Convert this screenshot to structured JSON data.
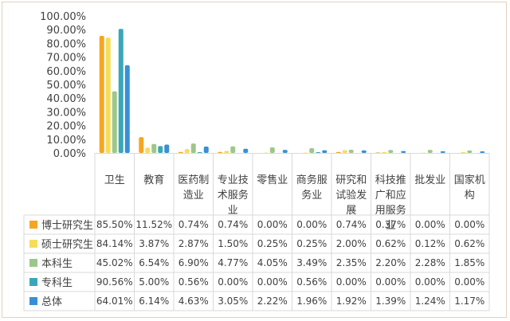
{
  "colors": {
    "博士研究生": "#f5a623",
    "硕士研究生": "#f5dd5a",
    "本科生": "#9dc78a",
    "专科生": "#3aa7b8",
    "总体": "#3a8fd4"
  },
  "chart_data": {
    "type": "bar",
    "ylim": [
      0,
      100
    ],
    "yticks": [
      "0.00%",
      "10.00%",
      "20.00%",
      "30.00%",
      "40.00%",
      "50.00%",
      "60.00%",
      "70.00%",
      "80.00%",
      "90.00%",
      "100.00%"
    ],
    "categories": [
      "卫生",
      "教育",
      "医药制造业",
      "专业技术服务业",
      "零售业",
      "商务服务业",
      "研究和试验发展",
      "科技推广和应用服务业",
      "批发业",
      "国家机构"
    ],
    "category_lines": [
      [
        "卫生"
      ],
      [
        "教育"
      ],
      [
        "医药制",
        "造业"
      ],
      [
        "专业技",
        "术服务",
        "业"
      ],
      [
        "零售业"
      ],
      [
        "商务服",
        "务业"
      ],
      [
        "研究和",
        "试验发",
        "展"
      ],
      [
        "科技推",
        "广和应",
        "用服务",
        "业"
      ],
      [
        "批发业"
      ],
      [
        "国家机",
        "构"
      ]
    ],
    "series": [
      {
        "name": "博士研究生",
        "values": [
          85.5,
          11.52,
          0.74,
          0.74,
          0.0,
          0.0,
          0.74,
          0.37,
          0.0,
          0.0
        ],
        "labels": [
          "85.50%",
          "11.52%",
          "0.74%",
          "0.74%",
          "0.00%",
          "0.00%",
          "0.74%",
          "0.37%",
          "0.00%",
          "0.00%"
        ]
      },
      {
        "name": "硕士研究生",
        "values": [
          84.14,
          3.87,
          2.87,
          1.5,
          0.25,
          0.25,
          2.0,
          0.62,
          0.12,
          0.62
        ],
        "labels": [
          "84.14%",
          "3.87%",
          "2.87%",
          "1.50%",
          "0.25%",
          "0.25%",
          "2.00%",
          "0.62%",
          "0.12%",
          "0.62%"
        ]
      },
      {
        "name": "本科生",
        "values": [
          45.02,
          6.54,
          6.9,
          4.77,
          4.05,
          3.49,
          2.35,
          2.2,
          2.28,
          1.85
        ],
        "labels": [
          "45.02%",
          "6.54%",
          "6.90%",
          "4.77%",
          "4.05%",
          "3.49%",
          "2.35%",
          "2.20%",
          "2.28%",
          "1.85%"
        ]
      },
      {
        "name": "专科生",
        "values": [
          90.56,
          5.0,
          0.56,
          0.0,
          0.0,
          0.56,
          0.0,
          0.0,
          0.0,
          0.0
        ],
        "labels": [
          "90.56%",
          "5.00%",
          "0.56%",
          "0.00%",
          "0.00%",
          "0.56%",
          "0.00%",
          "0.00%",
          "0.00%",
          "0.00%"
        ]
      },
      {
        "name": "总体",
        "values": [
          64.01,
          6.14,
          4.63,
          3.05,
          2.22,
          1.96,
          1.92,
          1.39,
          1.24,
          1.17
        ],
        "labels": [
          "64.01%",
          "6.14%",
          "4.63%",
          "3.05%",
          "2.22%",
          "1.96%",
          "1.92%",
          "1.39%",
          "1.24%",
          "1.17%"
        ]
      }
    ],
    "legend": "data-table",
    "grid": false
  }
}
